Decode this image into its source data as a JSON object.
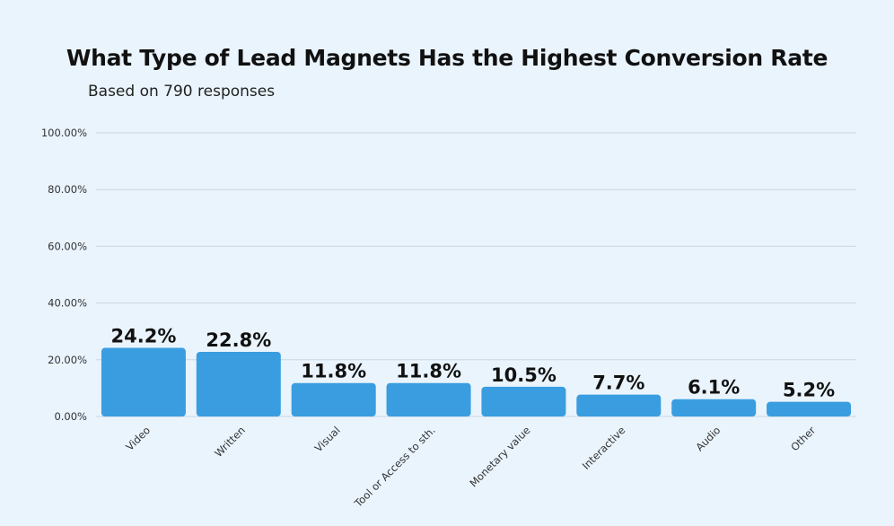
{
  "chart_data": {
    "type": "bar",
    "title": "What Type of Lead Magnets Has the Highest Conversion Rate",
    "subtitle": "Based on 790 responses",
    "categories": [
      "Video",
      "Written",
      "Visual",
      "Tool or Access to sth.",
      "Monetary value",
      "Interactive",
      "Audio",
      "Other"
    ],
    "values": [
      24.2,
      22.8,
      11.8,
      11.8,
      10.5,
      7.7,
      6.1,
      5.2
    ],
    "value_labels": [
      "24.2%",
      "22.8%",
      "11.8%",
      "11.8%",
      "10.5%",
      "7.7%",
      "6.1%",
      "5.2%"
    ],
    "yticks": [
      0,
      20,
      40,
      60,
      80,
      100
    ],
    "ytick_labels": [
      "0.00%",
      "20.00%",
      "40.00%",
      "60.00%",
      "80.00%",
      "100.00%"
    ],
    "ylim": [
      0,
      100
    ],
    "xlabel": "",
    "ylabel": "",
    "grid": true,
    "colors": {
      "bar": "#3a9de0",
      "grid": "#c9d6e2",
      "background": "#eaf4fd",
      "text": "#111111"
    }
  }
}
